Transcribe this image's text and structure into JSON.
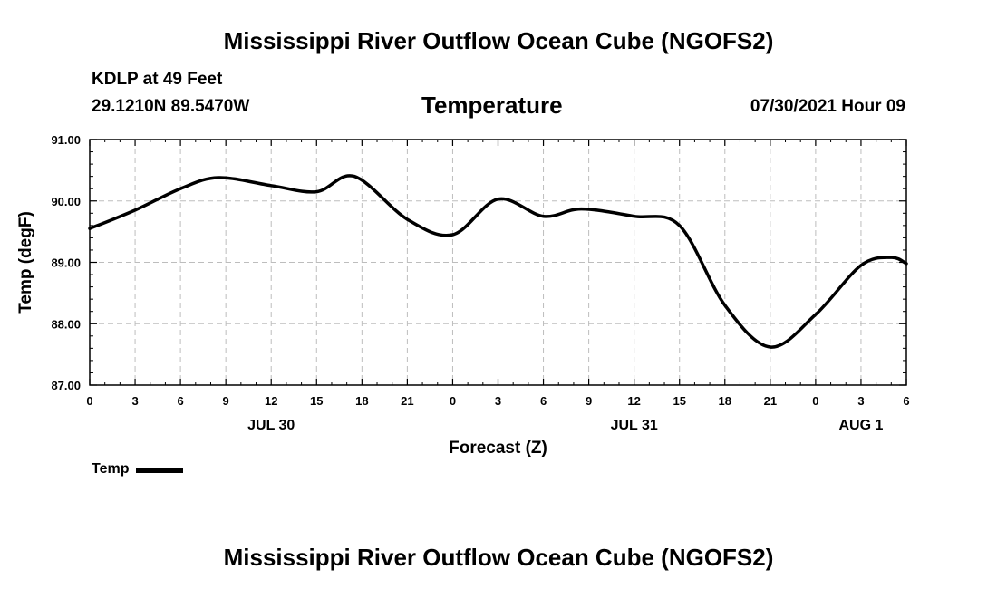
{
  "header": {
    "main_title": "Mississippi River Outflow Ocean Cube (NGOFS2)",
    "station_name": "KDLP at 49 Feet",
    "station_coords": "29.1210N  89.5470W",
    "plot_title": "Temperature",
    "timestamp": "07/30/2021 Hour 09"
  },
  "footer": {
    "title": "Mississippi River Outflow Ocean Cube (NGOFS2)"
  },
  "legend": {
    "label": "Temp"
  },
  "chart_data": {
    "type": "line",
    "title": "Temperature",
    "xlabel": "Forecast (Z)",
    "ylabel": "Temp (degF)",
    "xlim": [
      0,
      54
    ],
    "ylim": [
      87.0,
      91.0
    ],
    "grid": true,
    "line_color": "#000000",
    "x_ticks": [
      0,
      3,
      6,
      9,
      12,
      15,
      18,
      21,
      24,
      27,
      30,
      33,
      36,
      39,
      42,
      45,
      48,
      51,
      54
    ],
    "x_tick_labels": [
      "0",
      "3",
      "6",
      "9",
      "12",
      "15",
      "18",
      "21",
      "0",
      "3",
      "6",
      "9",
      "12",
      "15",
      "18",
      "21",
      "0",
      "3",
      "6"
    ],
    "date_labels": [
      {
        "label": "JUL 30",
        "x": 12
      },
      {
        "label": "JUL 31",
        "x": 36
      },
      {
        "label": "AUG 1",
        "x": 51
      }
    ],
    "y_ticks": [
      87.0,
      88.0,
      89.0,
      90.0,
      91.0
    ],
    "y_tick_labels": [
      "87.00",
      "88.00",
      "89.00",
      "90.00",
      "91.00"
    ],
    "series": [
      {
        "name": "Temp",
        "x": [
          0,
          3,
          6,
          8.5,
          12,
          15,
          17.5,
          21,
          24,
          27,
          30,
          32.5,
          36,
          39,
          42,
          45,
          48,
          51,
          53,
          54
        ],
        "values": [
          89.55,
          89.85,
          90.2,
          90.38,
          90.25,
          90.15,
          90.4,
          89.7,
          89.45,
          90.03,
          89.75,
          89.87,
          89.75,
          89.6,
          88.3,
          87.62,
          88.15,
          88.95,
          89.08,
          88.98
        ]
      }
    ]
  }
}
